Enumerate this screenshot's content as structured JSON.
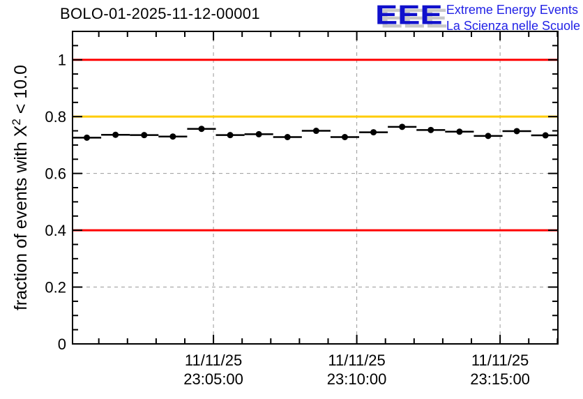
{
  "header": {
    "plot_title": "BOLO-01-2025-11-12-00001",
    "logo": {
      "acronym": "EEE",
      "line1": "Extreme Energy Events",
      "line2": "La Scienza nelle Scuole"
    }
  },
  "colors": {
    "logo_blue": "#1010cc",
    "logo_text_blue": "#2222e6",
    "logo_shadow_gray": "#c8c8c8",
    "reference_red": "#ff0000",
    "reference_orange": "#ffcc00",
    "grid_gray": "#999999",
    "marker_black": "#000000",
    "axis_black": "#000000"
  },
  "chart_data": {
    "type": "scatter",
    "title": "BOLO-01-2025-11-12-00001",
    "ylabel_parts": {
      "prefix": "fraction of events with X",
      "superscript": "2",
      "suffix": " < 10.0"
    },
    "xlabel": "",
    "ylim": [
      0,
      1.1
    ],
    "grid": "dashed gray lines at major ticks (both axes)",
    "legend": "none",
    "x_window": {
      "start": "23:00:05",
      "end": "23:17:01"
    },
    "x_ticks_major": [
      {
        "label_date": "11/11/25",
        "label_time": "23:05:00"
      },
      {
        "label_date": "11/11/25",
        "label_time": "23:10:00"
      },
      {
        "label_date": "11/11/25",
        "label_time": "23:15:00"
      }
    ],
    "x_minor_step_seconds": 60,
    "y_ticks_major": [
      0,
      0.2,
      0.4,
      0.6,
      0.8,
      1.0
    ],
    "y_tick_labels": [
      "0",
      "0.2",
      "0.4",
      "0.6",
      "0.8",
      "1"
    ],
    "y_minor_step": 0.05,
    "reference_lines": [
      {
        "y": 1.0,
        "color": "#ff0000"
      },
      {
        "y": 0.8,
        "color": "#ffcc00"
      },
      {
        "y": 0.4,
        "color": "#ff0000"
      }
    ],
    "series": [
      {
        "name": "fraction of events with chi2 < 10",
        "marker": "filled-circle",
        "color": "#000000",
        "x_error_seconds": 30,
        "points": [
          {
            "time": "23:00:35",
            "value": 0.726
          },
          {
            "time": "23:01:35",
            "value": 0.736
          },
          {
            "time": "23:02:35",
            "value": 0.735
          },
          {
            "time": "23:03:35",
            "value": 0.73
          },
          {
            "time": "23:04:35",
            "value": 0.757
          },
          {
            "time": "23:05:35",
            "value": 0.735
          },
          {
            "time": "23:06:35",
            "value": 0.738
          },
          {
            "time": "23:07:35",
            "value": 0.728
          },
          {
            "time": "23:08:35",
            "value": 0.75
          },
          {
            "time": "23:09:35",
            "value": 0.728
          },
          {
            "time": "23:10:35",
            "value": 0.745
          },
          {
            "time": "23:11:35",
            "value": 0.764
          },
          {
            "time": "23:12:35",
            "value": 0.753
          },
          {
            "time": "23:13:35",
            "value": 0.747
          },
          {
            "time": "23:14:35",
            "value": 0.732
          },
          {
            "time": "23:15:35",
            "value": 0.749
          },
          {
            "time": "23:16:35",
            "value": 0.734
          }
        ]
      }
    ]
  }
}
